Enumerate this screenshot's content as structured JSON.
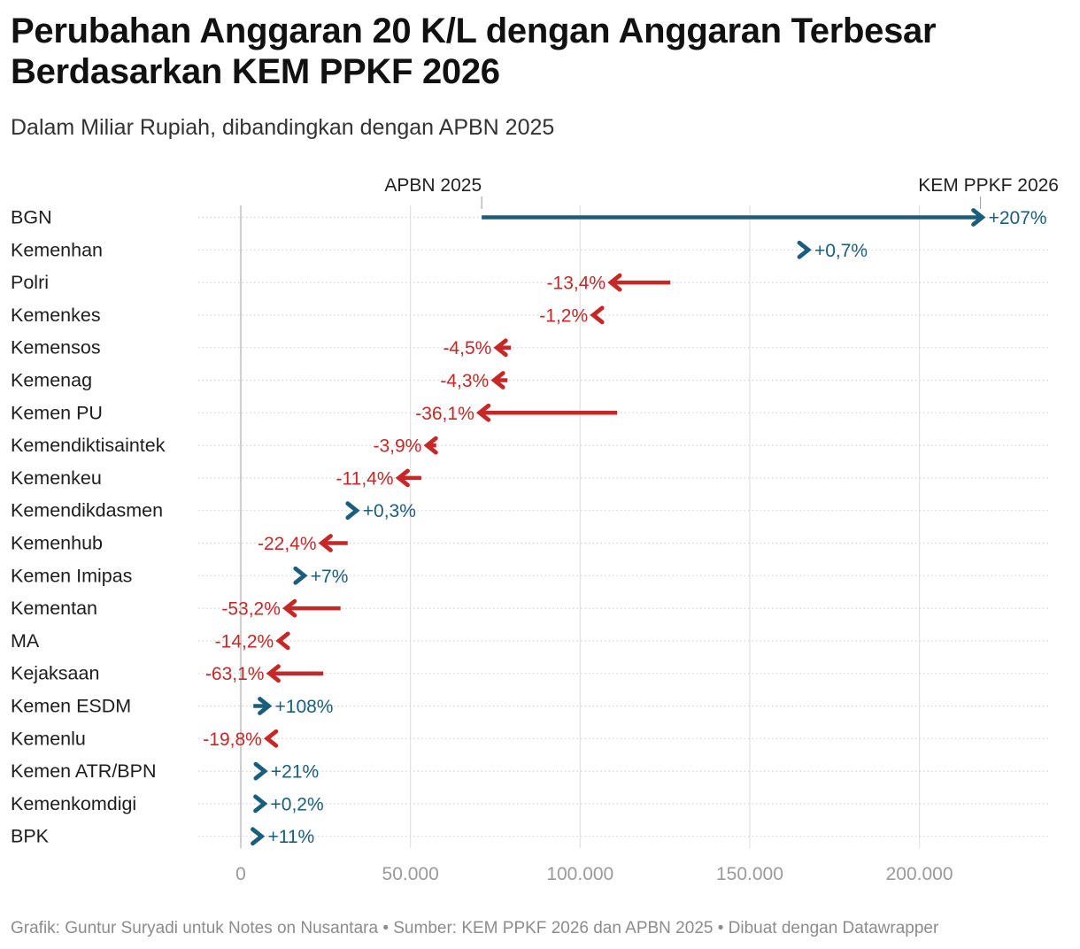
{
  "title": "Perubahan Anggaran 20 K/L dengan Anggaran Terbesar Berdasarkan KEM PPKF 2026",
  "subtitle": "Dalam Miliar Rupiah, dibandingkan dengan APBN 2025",
  "footer": "Grafik: Guntur Suryadi untuk Notes on Nusantara • Sumber: KEM PPKF 2026 dan APBN 2025 • Dibuat dengan Datawrapper",
  "colors": {
    "increase": "#1b5e7b",
    "decrease": "#c62828",
    "grid": "#e2e2e2",
    "axis_text": "#9a9a9a"
  },
  "chart_data": {
    "type": "arrow",
    "x_axis": {
      "ticks": [
        0,
        50000,
        100000,
        150000,
        200000
      ],
      "tick_labels": [
        "0",
        "50.000",
        "100.000",
        "150.000",
        "200.000"
      ],
      "xlim": [
        0,
        240000
      ]
    },
    "annotations": {
      "start_label": "APBN 2025",
      "end_label": "KEM PPKF 2026"
    },
    "series": [
      {
        "name": "BGN",
        "apbn_2025": 71000,
        "kem_ppkf_2026": 218000,
        "change_label": "+207%"
      },
      {
        "name": "Kemenhan",
        "apbn_2025": 165500,
        "kem_ppkf_2026": 166700,
        "change_label": "+0,7%"
      },
      {
        "name": "Polri",
        "apbn_2025": 126600,
        "kem_ppkf_2026": 109600,
        "change_label": "-13,4%"
      },
      {
        "name": "Kemenkes",
        "apbn_2025": 105600,
        "kem_ppkf_2026": 104400,
        "change_label": "-1,2%"
      },
      {
        "name": "Kemensos",
        "apbn_2025": 79600,
        "kem_ppkf_2026": 76000,
        "change_label": "-4,5%"
      },
      {
        "name": "Kemenag",
        "apbn_2025": 78600,
        "kem_ppkf_2026": 75200,
        "change_label": "-4,3%"
      },
      {
        "name": "Kemen PU",
        "apbn_2025": 110900,
        "kem_ppkf_2026": 70900,
        "change_label": "-36,1%"
      },
      {
        "name": "Kemendiktisaintek",
        "apbn_2025": 57600,
        "kem_ppkf_2026": 55400,
        "change_label": "-3,9%"
      },
      {
        "name": "Kemenkeu",
        "apbn_2025": 53200,
        "kem_ppkf_2026": 47100,
        "change_label": "-11,4%"
      },
      {
        "name": "Kemendikdasmen",
        "apbn_2025": 33500,
        "kem_ppkf_2026": 33600,
        "change_label": "+0,3%"
      },
      {
        "name": "Kemenhub",
        "apbn_2025": 31500,
        "kem_ppkf_2026": 24400,
        "change_label": "-22,4%"
      },
      {
        "name": "Kemen Imipas",
        "apbn_2025": 17000,
        "kem_ppkf_2026": 18200,
        "change_label": "+7%"
      },
      {
        "name": "Kementan",
        "apbn_2025": 29400,
        "kem_ppkf_2026": 13800,
        "change_label": "-53,2%"
      },
      {
        "name": "MA",
        "apbn_2025": 13800,
        "kem_ppkf_2026": 11800,
        "change_label": "-14,2%"
      },
      {
        "name": "Kejaksaan",
        "apbn_2025": 24300,
        "kem_ppkf_2026": 9000,
        "change_label": "-63,1%"
      },
      {
        "name": "Kemen ESDM",
        "apbn_2025": 3700,
        "kem_ppkf_2026": 7700,
        "change_label": "+108%"
      },
      {
        "name": "Kemenlu",
        "apbn_2025": 10300,
        "kem_ppkf_2026": 8300,
        "change_label": "-19,8%"
      },
      {
        "name": "Kemen ATR/BPN",
        "apbn_2025": 5400,
        "kem_ppkf_2026": 6500,
        "change_label": "+21%"
      },
      {
        "name": "Kemenkomdigi",
        "apbn_2025": 6300,
        "kem_ppkf_2026": 6400,
        "change_label": "+0,2%"
      },
      {
        "name": "BPK",
        "apbn_2025": 5100,
        "kem_ppkf_2026": 5600,
        "change_label": "+11%"
      }
    ]
  }
}
